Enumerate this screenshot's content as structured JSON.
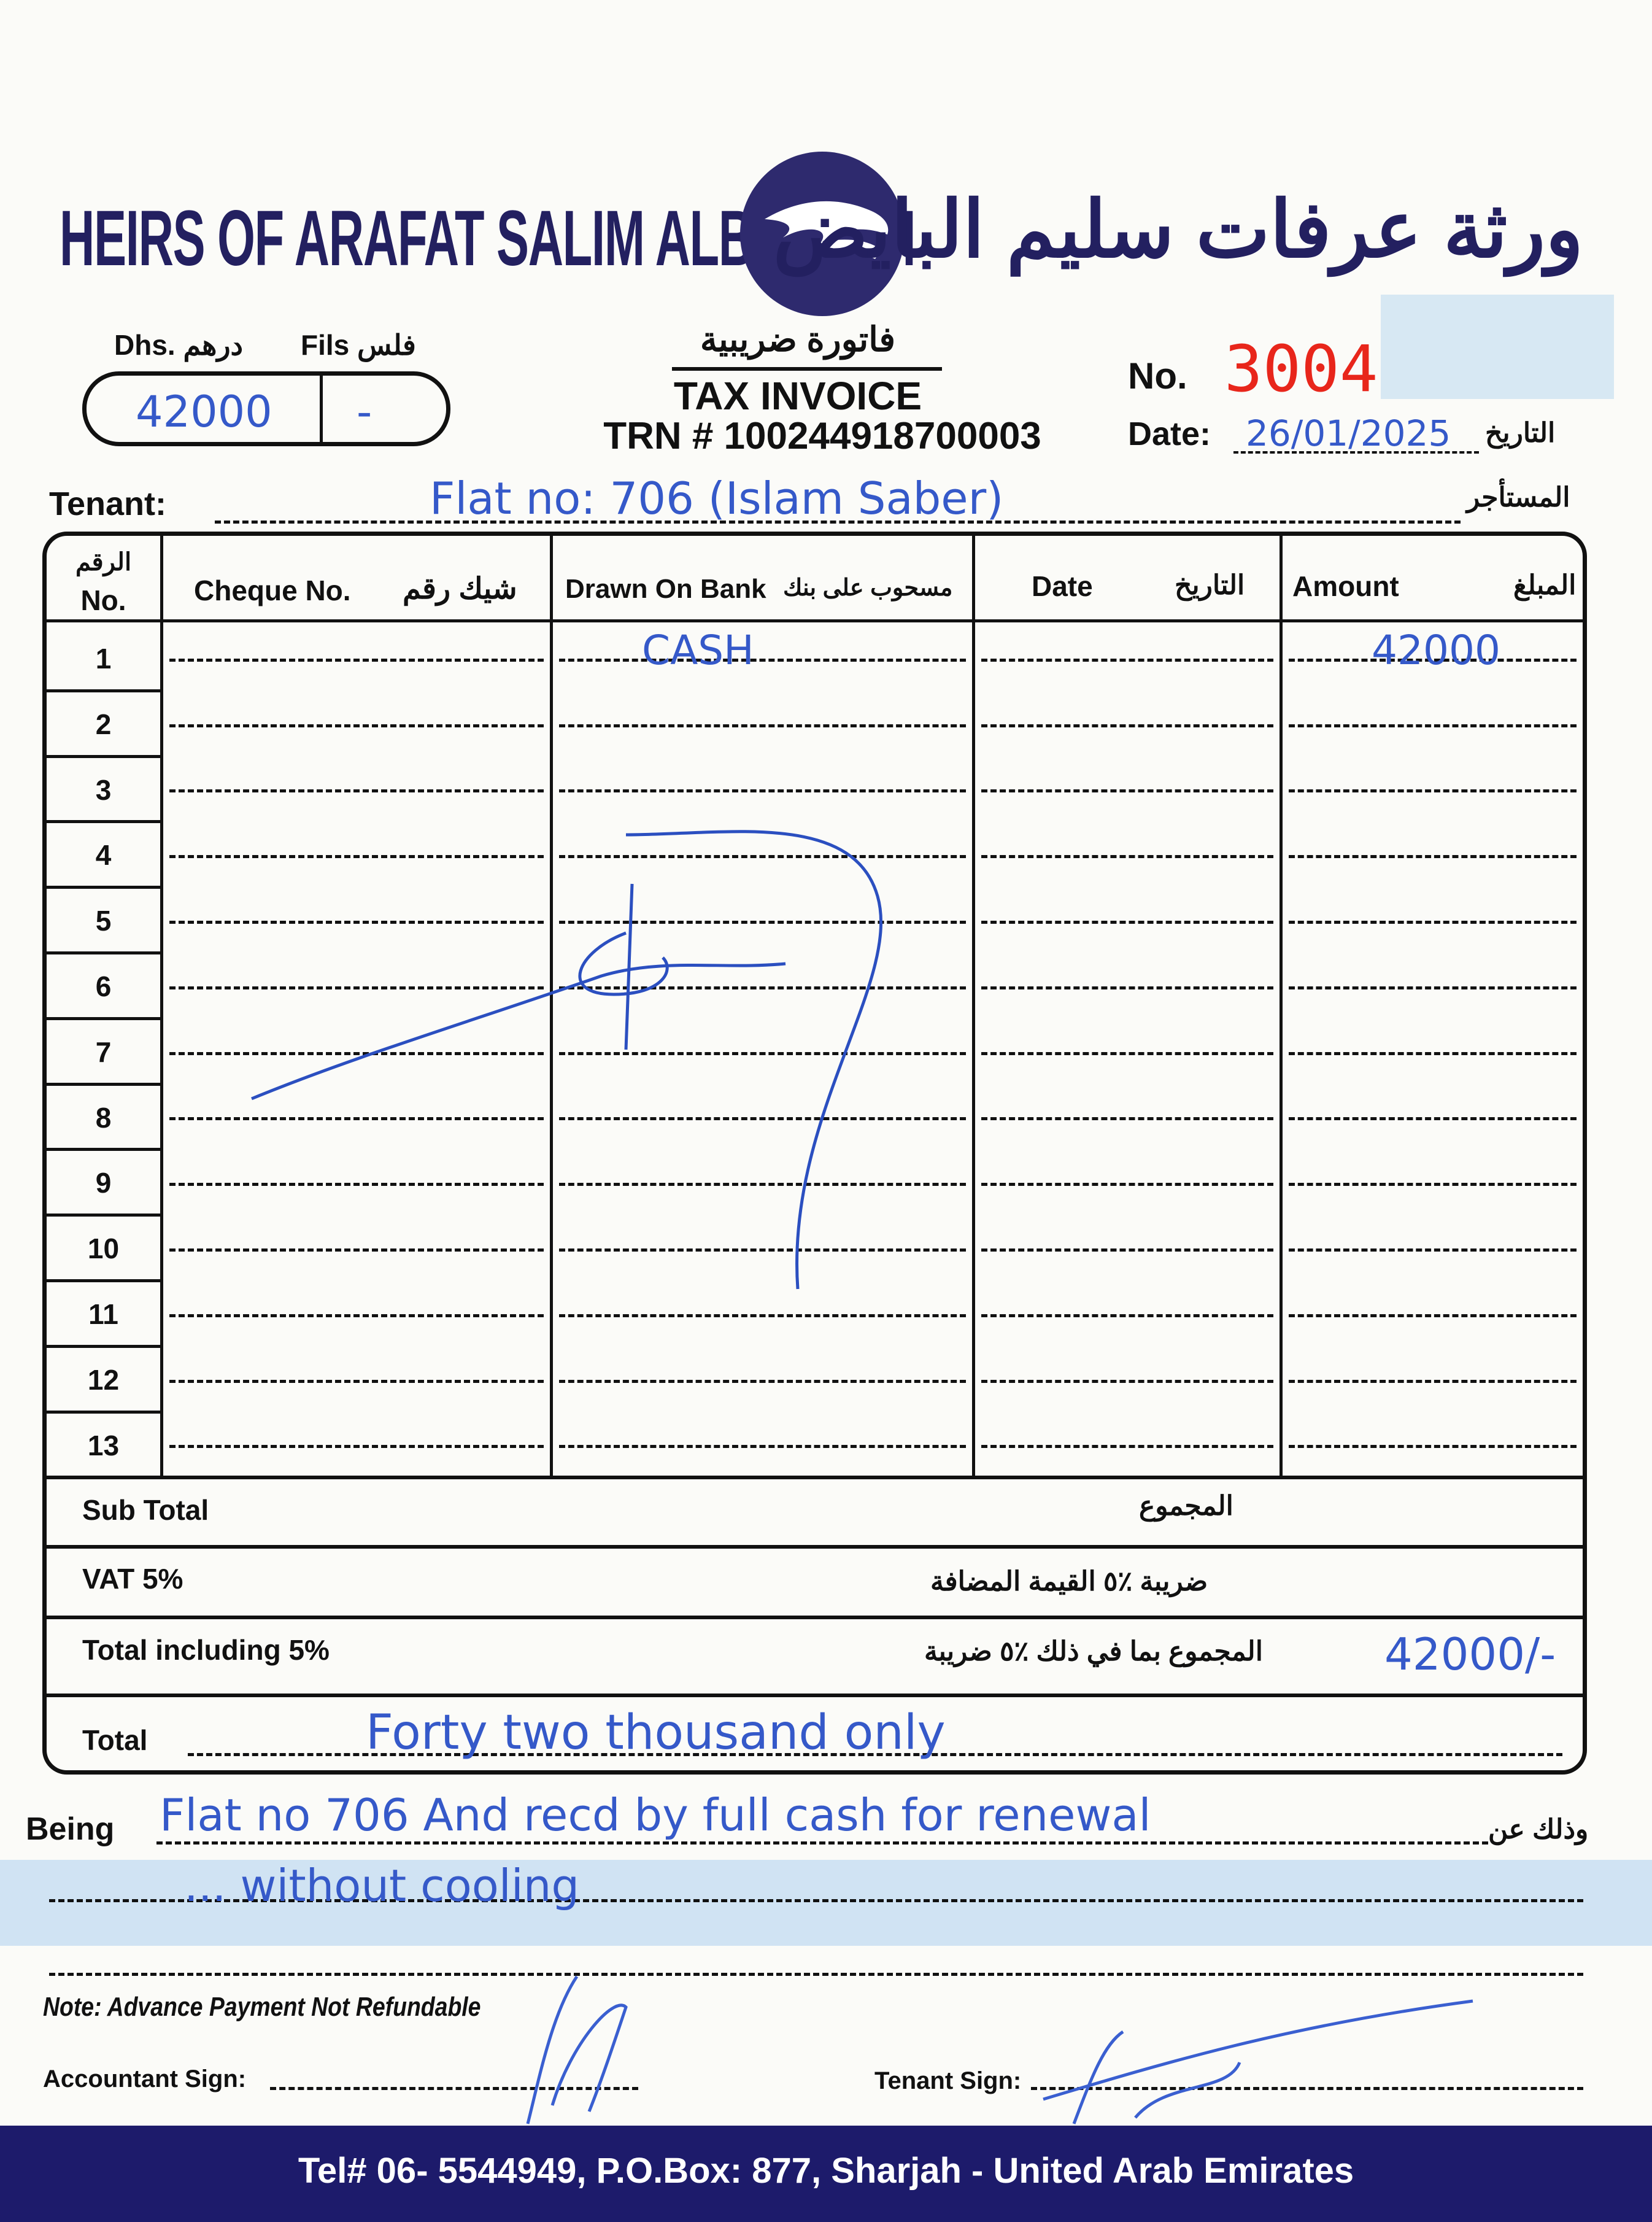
{
  "header": {
    "company_en": "HEIRS OF ARAFAT SALIM ALBAYEDH",
    "company_ar": "ورثة عرفات سليم البايض",
    "dhs_label": "Dhs. درهم",
    "fils_label": "Fils فلس",
    "amount_dhs": "42000",
    "amount_fils": "-",
    "tax_invoice_ar": "فاتورة ضريبية",
    "tax_invoice": "TAX INVOICE",
    "trn": "TRN # 100244918700003",
    "no_label": "No.",
    "invoice_no": "3004",
    "date_label": "Date:",
    "date_value": "26/01/2025",
    "date_ar": "التاريخ",
    "brand_color": "#2e2a6e",
    "number_color": "#e8261b",
    "ink_color": "#3559c9"
  },
  "tenant": {
    "label": "Tenant:",
    "value": "Flat no: 706 (Islam Saber)",
    "label_ar": "المستأجر"
  },
  "table": {
    "headers": {
      "no_ar": "الرقم",
      "no": "No.",
      "cheque": "Cheque No.",
      "cheque_ar": "شيك رقم",
      "bank": "Drawn On Bank",
      "bank_ar": "مسحوب على بنك",
      "date": "Date",
      "date_ar": "التاريخ",
      "amount": "Amount",
      "amount_ar": "المبلغ"
    },
    "rows": [
      {
        "no": "1",
        "cheque": "",
        "bank": "CASH",
        "date": "",
        "amount": "42000"
      },
      {
        "no": "2",
        "cheque": "",
        "bank": "",
        "date": "",
        "amount": ""
      },
      {
        "no": "3",
        "cheque": "",
        "bank": "",
        "date": "",
        "amount": ""
      },
      {
        "no": "4",
        "cheque": "",
        "bank": "",
        "date": "",
        "amount": ""
      },
      {
        "no": "5",
        "cheque": "",
        "bank": "",
        "date": "",
        "amount": ""
      },
      {
        "no": "6",
        "cheque": "",
        "bank": "",
        "date": "",
        "amount": ""
      },
      {
        "no": "7",
        "cheque": "",
        "bank": "",
        "date": "",
        "amount": ""
      },
      {
        "no": "8",
        "cheque": "",
        "bank": "",
        "date": "",
        "amount": ""
      },
      {
        "no": "9",
        "cheque": "",
        "bank": "",
        "date": "",
        "amount": ""
      },
      {
        "no": "10",
        "cheque": "",
        "bank": "",
        "date": "",
        "amount": ""
      },
      {
        "no": "11",
        "cheque": "",
        "bank": "",
        "date": "",
        "amount": ""
      },
      {
        "no": "12",
        "cheque": "",
        "bank": "",
        "date": "",
        "amount": ""
      },
      {
        "no": "13",
        "cheque": "",
        "bank": "",
        "date": "",
        "amount": ""
      }
    ]
  },
  "totals": {
    "subtotal_label": "Sub Total",
    "subtotal_ar": "المجموع",
    "vat_label": "VAT 5%",
    "vat_ar": "ضريبة ٪٥ القيمة المضافة",
    "total_incl_label": "Total including 5%",
    "total_incl_ar": "المجموع بما في ذلك ٪٥ ضريبة",
    "total_incl_value": "42000/-",
    "total_label": "Total",
    "total_words": "Forty two thousand only"
  },
  "being": {
    "label": "Being",
    "label_ar": "وذلك عن",
    "line1": "Flat no 706 And recd by full cash for renewal",
    "line2": "... without cooling"
  },
  "note": "Note: Advance Payment Not Refundable",
  "signatures": {
    "accountant_label": "Accountant Sign:",
    "tenant_label": "Tenant Sign:"
  },
  "footer": {
    "text": "Tel# 06- 5544949, P.O.Box: 877, Sharjah - United Arab Emirates"
  }
}
